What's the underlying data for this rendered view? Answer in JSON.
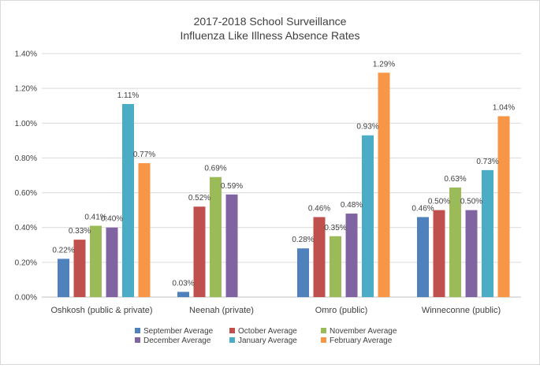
{
  "chart_data": {
    "type": "bar",
    "title": [
      "2017-2018 School Surveillance",
      "Influenza Like Illness Absence Rates"
    ],
    "xlabel": "",
    "ylabel": "",
    "ylim": [
      0,
      1.4
    ],
    "yticks": [
      "0.00%",
      "0.20%",
      "0.40%",
      "0.60%",
      "0.80%",
      "1.00%",
      "1.20%",
      "1.40%"
    ],
    "grid": true,
    "legend_position": "bottom",
    "categories": [
      "Oshkosh (public & private)",
      "Neenah (private)",
      "Omro (public)",
      "Winneconne (public)"
    ],
    "series": [
      {
        "name": "September Average",
        "color": "#4f81bd",
        "values": [
          0.22,
          0.03,
          0.28,
          0.46
        ],
        "labels": [
          "0.22%",
          "0.03%",
          "0.28%",
          "0.46%"
        ]
      },
      {
        "name": "October Average",
        "color": "#c0504d",
        "values": [
          0.33,
          0.52,
          0.46,
          0.5
        ],
        "labels": [
          "0.33%",
          "0.52%",
          "0.46%",
          "0.50%"
        ]
      },
      {
        "name": "November Average",
        "color": "#9bbb59",
        "values": [
          0.41,
          0.69,
          0.35,
          0.63
        ],
        "labels": [
          "0.41%",
          "0.69%",
          "0.35%",
          "0.63%"
        ]
      },
      {
        "name": "December Average",
        "color": "#8064a2",
        "values": [
          0.4,
          0.59,
          0.48,
          0.5
        ],
        "labels": [
          "0.40%",
          "0.59%",
          "0.48%",
          "0.50%"
        ]
      },
      {
        "name": "January Average",
        "color": "#4bacc6",
        "values": [
          1.11,
          null,
          0.93,
          0.73
        ],
        "labels": [
          "1.11%",
          null,
          "0.93%",
          "0.73%"
        ]
      },
      {
        "name": "February Average",
        "color": "#f79646",
        "values": [
          0.77,
          null,
          1.29,
          1.04
        ],
        "labels": [
          "0.77%",
          null,
          "1.29%",
          "1.04%"
        ]
      }
    ]
  }
}
